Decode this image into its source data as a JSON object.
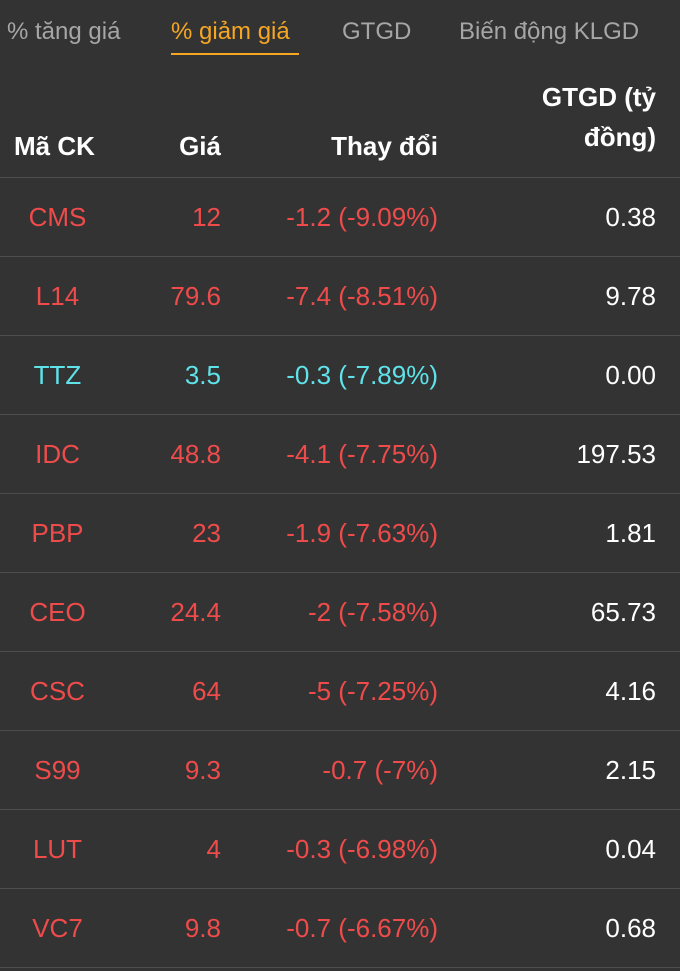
{
  "tabs": [
    {
      "label": "% tăng giá",
      "active": false
    },
    {
      "label": "% giảm giá",
      "active": true
    },
    {
      "label": "GTGD",
      "active": false
    },
    {
      "label": "Biến động KLGD",
      "active": false
    }
  ],
  "columns": {
    "symbol": "Mã CK",
    "price": "Giá",
    "change": "Thay đổi",
    "value_line1": "GTGD (tỷ",
    "value_line2": "đồng)"
  },
  "colors": {
    "down": "#ef4b4b",
    "floor": "#5ee3ea",
    "accent": "#f5a623"
  },
  "rows": [
    {
      "symbol": "CMS",
      "price": "12",
      "change": "-1.2 (-9.09%)",
      "value": "0.38",
      "status": "down"
    },
    {
      "symbol": "L14",
      "price": "79.6",
      "change": "-7.4 (-8.51%)",
      "value": "9.78",
      "status": "down"
    },
    {
      "symbol": "TTZ",
      "price": "3.5",
      "change": "-0.3 (-7.89%)",
      "value": "0.00",
      "status": "floor"
    },
    {
      "symbol": "IDC",
      "price": "48.8",
      "change": "-4.1 (-7.75%)",
      "value": "197.53",
      "status": "down"
    },
    {
      "symbol": "PBP",
      "price": "23",
      "change": "-1.9 (-7.63%)",
      "value": "1.81",
      "status": "down"
    },
    {
      "symbol": "CEO",
      "price": "24.4",
      "change": "-2 (-7.58%)",
      "value": "65.73",
      "status": "down"
    },
    {
      "symbol": "CSC",
      "price": "64",
      "change": "-5 (-7.25%)",
      "value": "4.16",
      "status": "down"
    },
    {
      "symbol": "S99",
      "price": "9.3",
      "change": "-0.7 (-7%)",
      "value": "2.15",
      "status": "down"
    },
    {
      "symbol": "LUT",
      "price": "4",
      "change": "-0.3 (-6.98%)",
      "value": "0.04",
      "status": "down"
    },
    {
      "symbol": "VC7",
      "price": "9.8",
      "change": "-0.7 (-6.67%)",
      "value": "0.68",
      "status": "down"
    }
  ]
}
